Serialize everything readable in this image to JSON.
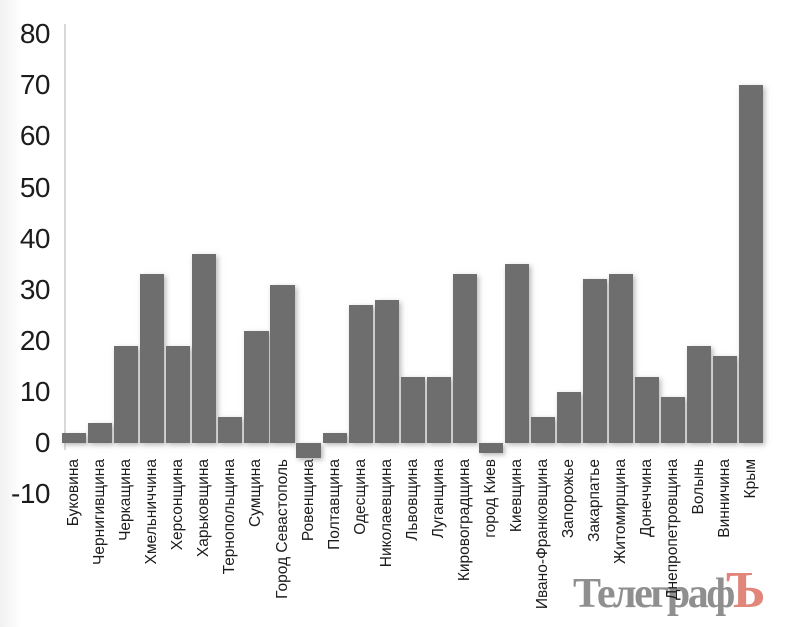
{
  "chart_data": {
    "type": "bar",
    "title": "",
    "xlabel": "",
    "ylabel": "",
    "categories": [
      "Буковина",
      "Чернигивщина",
      "Черкащина",
      "Хмельниччина",
      "Херсонщина",
      "Харьковщина",
      "Тернопольщина",
      "Сумщина",
      "Город Севастополь",
      "Ровенщина",
      "Полтавщина",
      "Одесщина",
      "Николаевщина",
      "Львовщина",
      "Луганщина",
      "Кировоградщина",
      "город Киев",
      "Киевщина",
      "Ивано-Франковщина",
      "Запорожье",
      "Закарпатье",
      "Житомирщина",
      "Донеччина",
      "Днепропетровщина",
      "Волынь",
      "Винничина",
      "Крым"
    ],
    "values": [
      2,
      4,
      19,
      33,
      19,
      37,
      5,
      22,
      31,
      -3,
      2,
      27,
      28,
      13,
      13,
      33,
      -2,
      35,
      5,
      10,
      32,
      33,
      13,
      9,
      19,
      17,
      70
    ],
    "yticks": [
      80,
      70,
      60,
      50,
      40,
      30,
      20,
      10,
      0,
      -10
    ],
    "ylim": [
      -10,
      80
    ],
    "grid": false,
    "legend": false,
    "bar_color": "#6e6e6e",
    "axis_line_color": "#d9d9d9",
    "label_color": "#1c1c1c"
  },
  "watermark": {
    "brand": "Телеграф",
    "accent_letter": "Ъ",
    "brand_color": "#8f8f8f",
    "accent_color": "#e2857a"
  }
}
